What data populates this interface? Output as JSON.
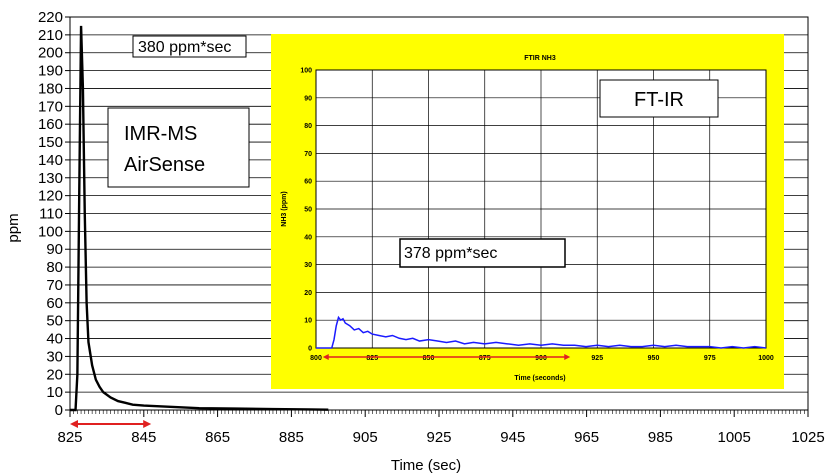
{
  "chart_data": [
    {
      "type": "line",
      "title": "",
      "xlabel": "Time  (sec)",
      "ylabel": "ppm",
      "xlim": [
        825,
        1025
      ],
      "ylim": [
        0,
        220
      ],
      "x_ticks": [
        825,
        845,
        865,
        885,
        905,
        925,
        945,
        965,
        985,
        1005,
        1025
      ],
      "y_ticks": [
        0,
        10,
        20,
        30,
        40,
        50,
        60,
        70,
        80,
        90,
        100,
        110,
        120,
        130,
        140,
        150,
        160,
        170,
        180,
        190,
        200,
        210,
        220
      ],
      "grid": "horizontal",
      "series": [
        {
          "color": "#000000",
          "x": [
            825,
            826.5,
            827,
            827.5,
            828,
            828.5,
            829,
            829.5,
            830,
            831,
            832,
            833,
            834,
            836,
            838,
            840,
            842,
            845,
            850,
            855,
            860,
            870,
            880,
            890,
            895
          ],
          "y": [
            0,
            0,
            20,
            120,
            215,
            180,
            110,
            60,
            38,
            25,
            17,
            13,
            10,
            7,
            5,
            4,
            3,
            2.5,
            2,
            1.5,
            1,
            0.8,
            0.5,
            0.3,
            0.2
          ]
        }
      ],
      "annotations": {
        "area_top": "380 ppm*sec",
        "instruments": [
          "IMR-MS",
          "AirSense"
        ]
      },
      "integration_range": [
        825,
        847
      ],
      "integration_color": "#e02020"
    },
    {
      "type": "line",
      "title": "FTIR NH3",
      "xlabel": "Time (seconds)",
      "ylabel": "NH3 (ppm)",
      "xlim": [
        800,
        1000
      ],
      "ylim": [
        0,
        100
      ],
      "x_ticks": [
        800,
        825,
        850,
        875,
        900,
        925,
        950,
        975,
        1000
      ],
      "y_ticks": [
        0,
        10,
        20,
        30,
        40,
        50,
        60,
        70,
        80,
        90,
        100
      ],
      "grid": "both",
      "background": "#ffff00",
      "series": [
        {
          "color": "#1a1aff",
          "x": [
            800,
            807,
            808,
            809,
            810,
            811,
            812,
            813,
            815,
            817,
            819,
            821,
            823,
            825,
            828,
            831,
            834,
            837,
            840,
            843,
            846,
            850,
            854,
            858,
            862,
            866,
            870,
            875,
            880,
            885,
            890,
            895,
            900,
            905,
            910,
            915,
            920,
            925,
            930,
            935,
            940,
            945,
            950,
            955,
            960,
            965,
            970,
            975,
            980,
            985,
            990,
            995,
            1000
          ],
          "y": [
            0,
            0,
            3,
            8,
            11,
            10,
            10.5,
            9,
            8,
            6.5,
            7,
            5.5,
            6,
            5,
            4.5,
            4,
            4.5,
            3.5,
            3,
            3.5,
            2.5,
            3,
            2.5,
            2,
            2.5,
            1.5,
            2,
            1.5,
            2,
            1.5,
            1,
            1.5,
            1,
            1.5,
            1,
            1,
            0.5,
            1,
            0.5,
            1,
            0.5,
            0.5,
            1,
            0.5,
            1,
            0.5,
            0.5,
            0.5,
            0,
            0.5,
            0,
            0.5,
            0
          ]
        }
      ],
      "annotations": {
        "area": "378 ppm*sec",
        "instrument": "FT-IR"
      },
      "integration_range": [
        803,
        913
      ],
      "integration_color": "#e02020"
    }
  ]
}
